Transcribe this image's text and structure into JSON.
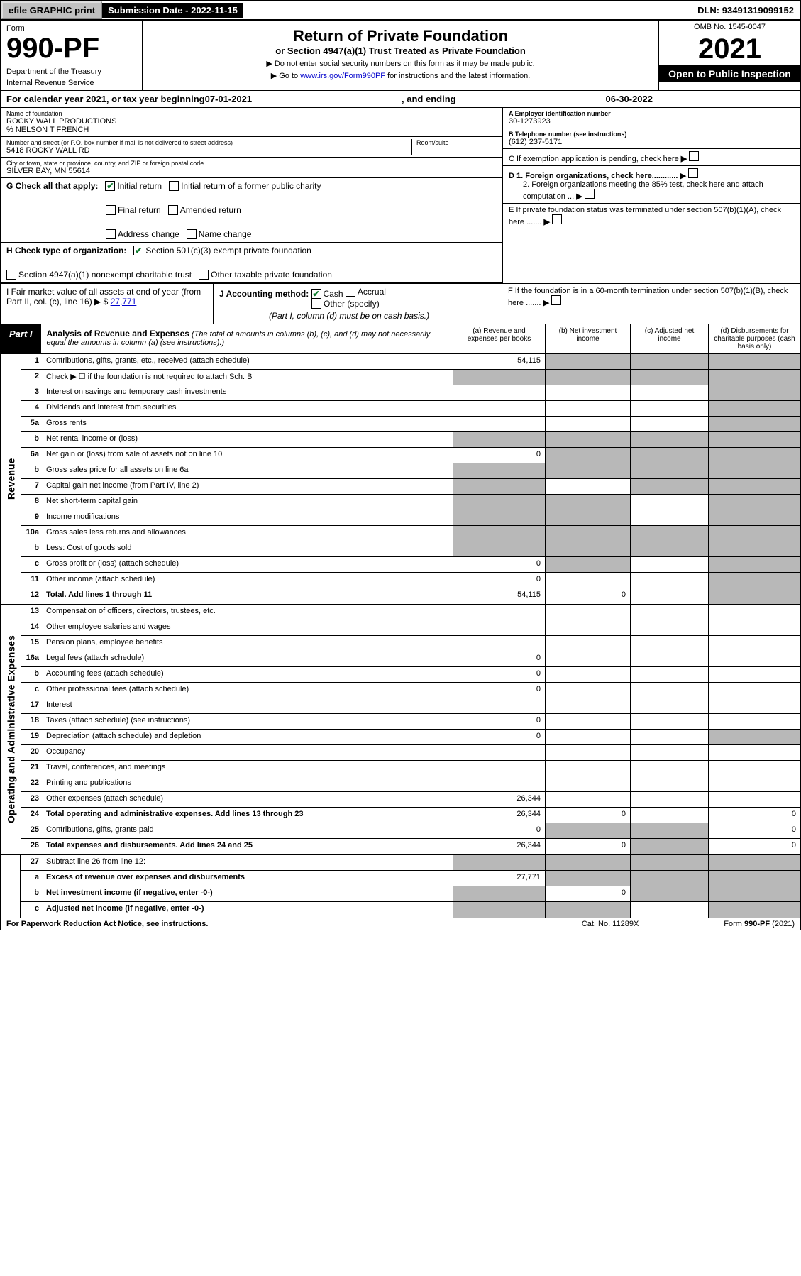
{
  "top": {
    "efile": "efile GRAPHIC print",
    "sub_date_label": "Submission Date - ",
    "sub_date": "2022-11-15",
    "dln_label": "DLN: ",
    "dln": "93491319099152"
  },
  "header": {
    "form_word": "Form",
    "form_no": "990-PF",
    "dept": "Department of the Treasury",
    "irs": "Internal Revenue Service",
    "title": "Return of Private Foundation",
    "subtitle": "or Section 4947(a)(1) Trust Treated as Private Foundation",
    "note1": "▶ Do not enter social security numbers on this form as it may be made public.",
    "note2_a": "▶ Go to ",
    "note2_link": "www.irs.gov/Form990PF",
    "note2_b": " for instructions and the latest information.",
    "omb": "OMB No. 1545-0047",
    "year": "2021",
    "open": "Open to Public Inspection"
  },
  "cal": {
    "prefix": "For calendar year 2021, or tax year beginning ",
    "begin": "07-01-2021",
    "mid": ", and ending ",
    "end": "06-30-2022"
  },
  "org": {
    "name_label": "Name of foundation",
    "name": "ROCKY WALL PRODUCTIONS",
    "co": "% NELSON T FRENCH",
    "addr_label": "Number and street (or P.O. box number if mail is not delivered to street address)",
    "addr": "5418 ROCKY WALL RD",
    "room_label": "Room/suite",
    "city_label": "City or town, state or province, country, and ZIP or foreign postal code",
    "city": "SILVER BAY, MN  55614",
    "ein_label": "A Employer identification number",
    "ein": "30-1273923",
    "phone_label": "B Telephone number (see instructions)",
    "phone": "(612) 237-5171",
    "c_label": "C If exemption application is pending, check here",
    "d1": "D 1. Foreign organizations, check here............",
    "d2": "2. Foreign organizations meeting the 85% test, check here and attach computation ...",
    "e": "E  If private foundation status was terminated under section 507(b)(1)(A), check here .......",
    "f": "F  If the foundation is in a 60-month termination under section 507(b)(1)(B), check here .......",
    "g_label": "G Check all that apply:",
    "g_initial": "Initial return",
    "g_initial_former": "Initial return of a former public charity",
    "g_final": "Final return",
    "g_amended": "Amended return",
    "g_addr": "Address change",
    "g_name": "Name change",
    "h_label": "H Check type of organization:",
    "h_501c3": "Section 501(c)(3) exempt private foundation",
    "h_4947": "Section 4947(a)(1) nonexempt charitable trust",
    "h_other": "Other taxable private foundation",
    "i_label": "I Fair market value of all assets at end of year (from Part II, col. (c), line 16) ▶ $ ",
    "i_val": "27,771",
    "j_label": "J Accounting method:",
    "j_cash": "Cash",
    "j_accrual": "Accrual",
    "j_other": "Other (specify)",
    "j_note": "(Part I, column (d) must be on cash basis.)"
  },
  "part1": {
    "label": "Part I",
    "title": "Analysis of Revenue and Expenses",
    "title_note": " (The total of amounts in columns (b), (c), and (d) may not necessarily equal the amounts in column (a) (see instructions).)",
    "col_a": "(a)  Revenue and expenses per books",
    "col_b": "(b)  Net investment income",
    "col_c": "(c)  Adjusted net income",
    "col_d": "(d)  Disbursements for charitable purposes (cash basis only)"
  },
  "revenue_label": "Revenue",
  "expenses_label": "Operating and Administrative Expenses",
  "rows": {
    "r1": {
      "ln": "1",
      "desc": "Contributions, gifts, grants, etc., received (attach schedule)",
      "a": "54,115"
    },
    "r2": {
      "ln": "2",
      "desc": "Check ▶ ☐ if the foundation is not required to attach Sch. B"
    },
    "r3": {
      "ln": "3",
      "desc": "Interest on savings and temporary cash investments"
    },
    "r4": {
      "ln": "4",
      "desc": "Dividends and interest from securities"
    },
    "r5a": {
      "ln": "5a",
      "desc": "Gross rents"
    },
    "r5b": {
      "ln": "b",
      "desc": "Net rental income or (loss)"
    },
    "r6a": {
      "ln": "6a",
      "desc": "Net gain or (loss) from sale of assets not on line 10",
      "a": "0"
    },
    "r6b": {
      "ln": "b",
      "desc": "Gross sales price for all assets on line 6a"
    },
    "r7": {
      "ln": "7",
      "desc": "Capital gain net income (from Part IV, line 2)"
    },
    "r8": {
      "ln": "8",
      "desc": "Net short-term capital gain"
    },
    "r9": {
      "ln": "9",
      "desc": "Income modifications"
    },
    "r10a": {
      "ln": "10a",
      "desc": "Gross sales less returns and allowances"
    },
    "r10b": {
      "ln": "b",
      "desc": "Less: Cost of goods sold"
    },
    "r10c": {
      "ln": "c",
      "desc": "Gross profit or (loss) (attach schedule)",
      "a": "0"
    },
    "r11": {
      "ln": "11",
      "desc": "Other income (attach schedule)",
      "a": "0"
    },
    "r12": {
      "ln": "12",
      "desc": "Total. Add lines 1 through 11",
      "a": "54,115",
      "b": "0"
    },
    "r13": {
      "ln": "13",
      "desc": "Compensation of officers, directors, trustees, etc."
    },
    "r14": {
      "ln": "14",
      "desc": "Other employee salaries and wages"
    },
    "r15": {
      "ln": "15",
      "desc": "Pension plans, employee benefits"
    },
    "r16a": {
      "ln": "16a",
      "desc": "Legal fees (attach schedule)",
      "a": "0"
    },
    "r16b": {
      "ln": "b",
      "desc": "Accounting fees (attach schedule)",
      "a": "0"
    },
    "r16c": {
      "ln": "c",
      "desc": "Other professional fees (attach schedule)",
      "a": "0"
    },
    "r17": {
      "ln": "17",
      "desc": "Interest"
    },
    "r18": {
      "ln": "18",
      "desc": "Taxes (attach schedule) (see instructions)",
      "a": "0"
    },
    "r19": {
      "ln": "19",
      "desc": "Depreciation (attach schedule) and depletion",
      "a": "0"
    },
    "r20": {
      "ln": "20",
      "desc": "Occupancy"
    },
    "r21": {
      "ln": "21",
      "desc": "Travel, conferences, and meetings"
    },
    "r22": {
      "ln": "22",
      "desc": "Printing and publications"
    },
    "r23": {
      "ln": "23",
      "desc": "Other expenses (attach schedule)",
      "a": "26,344"
    },
    "r24": {
      "ln": "24",
      "desc": "Total operating and administrative expenses. Add lines 13 through 23",
      "a": "26,344",
      "b": "0",
      "d": "0"
    },
    "r25": {
      "ln": "25",
      "desc": "Contributions, gifts, grants paid",
      "a": "0",
      "d": "0"
    },
    "r26": {
      "ln": "26",
      "desc": "Total expenses and disbursements. Add lines 24 and 25",
      "a": "26,344",
      "b": "0",
      "d": "0"
    },
    "r27": {
      "ln": "27",
      "desc": "Subtract line 26 from line 12:"
    },
    "r27a": {
      "ln": "a",
      "desc": "Excess of revenue over expenses and disbursements",
      "a": "27,771"
    },
    "r27b": {
      "ln": "b",
      "desc": "Net investment income (if negative, enter -0-)",
      "b": "0"
    },
    "r27c": {
      "ln": "c",
      "desc": "Adjusted net income (if negative, enter -0-)"
    }
  },
  "footer": {
    "left": "For Paperwork Reduction Act Notice, see instructions.",
    "mid": "Cat. No. 11289X",
    "right": "Form 990-PF (2021)"
  },
  "colors": {
    "shade": "#b8b8b8",
    "black": "#000000",
    "link": "#0000cc",
    "check": "#0a7a2a"
  }
}
